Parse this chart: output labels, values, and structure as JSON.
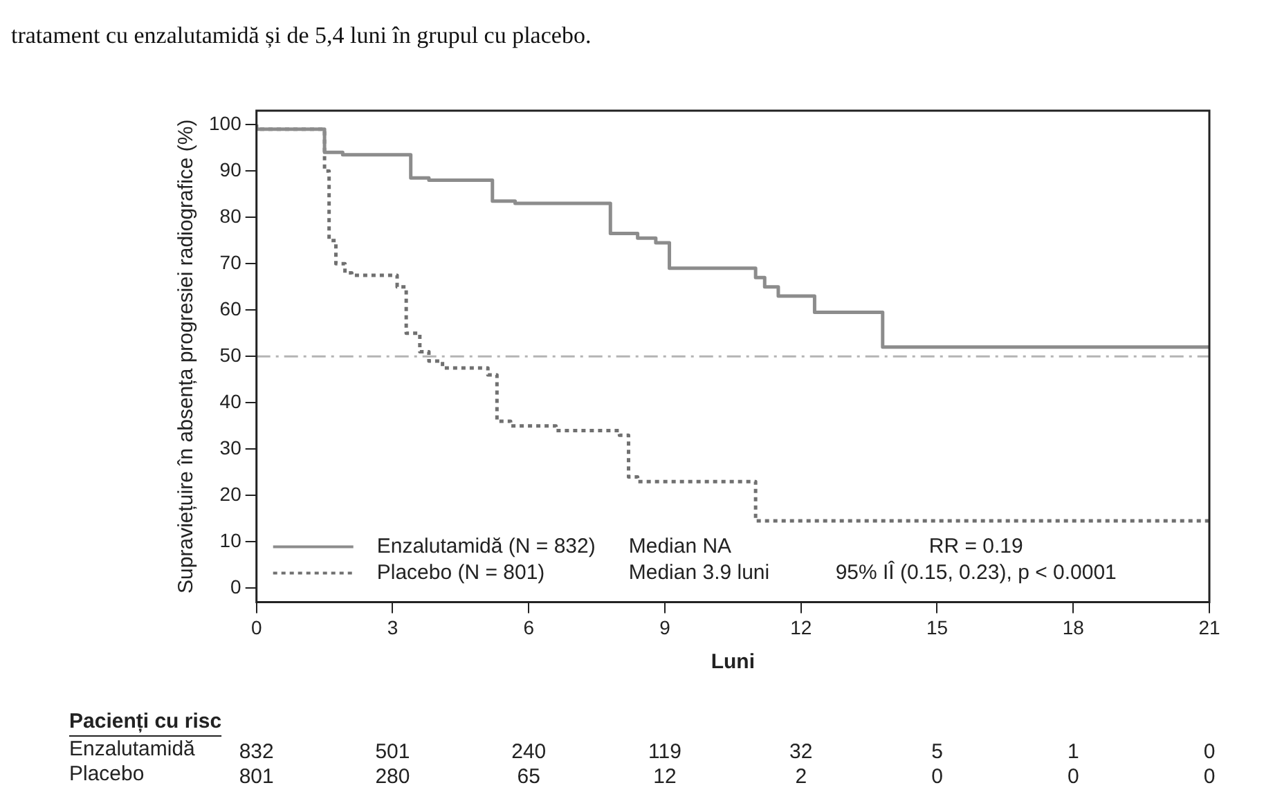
{
  "chart_data": {
    "type": "step",
    "xlabel": "Luni",
    "ylabel": "Supraviețuire în absența progresiei radiografice (%)",
    "xlim": [
      0,
      21
    ],
    "xticks": [
      0,
      3,
      6,
      9,
      12,
      15,
      18,
      21
    ],
    "ylim": [
      -3,
      103
    ],
    "yticks": [
      0,
      10,
      20,
      30,
      40,
      50,
      60,
      70,
      80,
      90,
      100
    ],
    "legend": "bottom left",
    "grid": false,
    "series": [
      {
        "name": "Enzalutamidă (N = 832)",
        "color": "#8c8c8c",
        "line_style": "solid",
        "x": [
          0,
          1.5,
          1.9,
          3.4,
          3.8,
          5.2,
          5.7,
          7.8,
          8.4,
          8.8,
          9.1,
          11.0,
          11.2,
          11.5,
          12.3,
          13.8,
          14.1,
          21
        ],
        "values": [
          100,
          99,
          94,
          93.5,
          88.5,
          88,
          83.5,
          83,
          76.5,
          75.5,
          74.5,
          69,
          67,
          65,
          63,
          59.5,
          52,
          52
        ]
      },
      {
        "name": "Placebo (N = 801)",
        "color": "#707070",
        "line_style": "dotted",
        "x": [
          0,
          1.5,
          1.6,
          1.75,
          1.95,
          2.1,
          3.1,
          3.3,
          3.6,
          3.8,
          4.1,
          5.1,
          5.3,
          5.6,
          6.6,
          8.0,
          8.2,
          8.4,
          8.6,
          11.0,
          11.2,
          21
        ],
        "values": [
          100,
          99,
          90,
          75,
          70,
          68,
          67.5,
          65,
          55,
          51,
          49,
          47.5,
          46,
          36,
          35,
          34,
          33,
          24,
          23,
          23,
          14.5,
          14.5
        ]
      }
    ],
    "ref_lines": [
      {
        "axis": "y",
        "value": 50,
        "color": "#b4b4b4",
        "line_style": "dashed"
      }
    ],
    "annotations": [
      "tratament cu enzalutamidă și de 5,4 luni în grupul cu placebo.",
      "Median NA",
      "Median 3.9 luni",
      "RR = 0.19",
      "95% IÎ (0.15, 0.23), p < 0.0001",
      "Pacienți cu risc",
      "Enzalutamidă",
      "Placebo",
      "832",
      "501",
      "240",
      "119",
      "32",
      "5",
      "1",
      "0",
      "801",
      "280",
      "65",
      "12",
      "2",
      "0",
      "0",
      "0"
    ]
  }
}
